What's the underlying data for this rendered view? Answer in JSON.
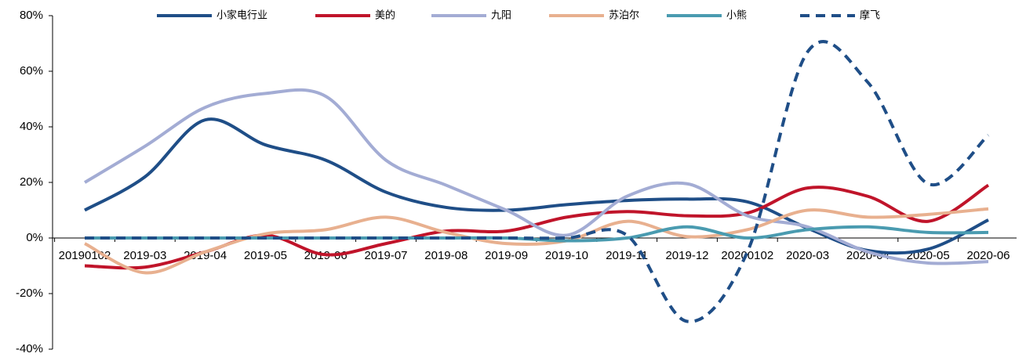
{
  "chart_data": {
    "type": "line",
    "categories": [
      "20190102",
      "2019-03",
      "2019-04",
      "2019-05",
      "2019-06",
      "2019-07",
      "2019-08",
      "2019-09",
      "2019-10",
      "2019-11",
      "2019-12",
      "20200102",
      "2020-03",
      "2020-04",
      "2020-05",
      "2020-06"
    ],
    "series": [
      {
        "name": "小家电行业",
        "color": "#1f4e87",
        "dashed": false,
        "values": [
          10,
          22,
          42.5,
          33.5,
          28,
          16.5,
          11,
          10,
          12,
          13.5,
          14,
          13,
          3.5,
          -4.5,
          -4,
          6.5
        ]
      },
      {
        "name": "美的",
        "color": "#c0142a",
        "dashed": false,
        "values": [
          -10,
          -10.5,
          -5,
          1,
          -6,
          -2,
          2.5,
          2.5,
          7.5,
          9.5,
          8,
          9,
          18,
          15,
          6,
          19
        ]
      },
      {
        "name": "九阳",
        "color": "#a3acd4",
        "dashed": false,
        "values": [
          20,
          33,
          47,
          52,
          51,
          28,
          19,
          10,
          1,
          15,
          19.5,
          8,
          4,
          -5,
          -9,
          -8.5
        ]
      },
      {
        "name": "苏泊尔",
        "color": "#e8b08f",
        "dashed": false,
        "values": [
          -2,
          -12.5,
          -5,
          1.5,
          3,
          7.5,
          2,
          -2,
          -1,
          6,
          0.5,
          3,
          10,
          7.5,
          8.5,
          10.5
        ]
      },
      {
        "name": "小熊",
        "color": "#4a9bb0",
        "dashed": false,
        "values": [
          0,
          0,
          0,
          0,
          0,
          0,
          0,
          0,
          -1,
          0,
          4,
          0,
          3,
          4,
          2,
          2
        ]
      },
      {
        "name": "摩飞",
        "color": "#1f4e87",
        "dashed": true,
        "values": [
          0,
          0,
          0,
          0,
          0,
          0,
          0,
          0,
          0,
          1,
          -30,
          -5,
          67,
          56,
          19.5,
          37
        ]
      }
    ],
    "ylim": [
      -40,
      80
    ],
    "yticks": [
      {
        "value": -40,
        "label": "-40%"
      },
      {
        "value": -20,
        "label": "-20%"
      },
      {
        "value": 0,
        "label": "0%"
      },
      {
        "value": 20,
        "label": "20%"
      },
      {
        "value": 40,
        "label": "40%"
      },
      {
        "value": 60,
        "label": "60%"
      },
      {
        "value": 80,
        "label": "80%"
      }
    ],
    "legend": "top"
  }
}
